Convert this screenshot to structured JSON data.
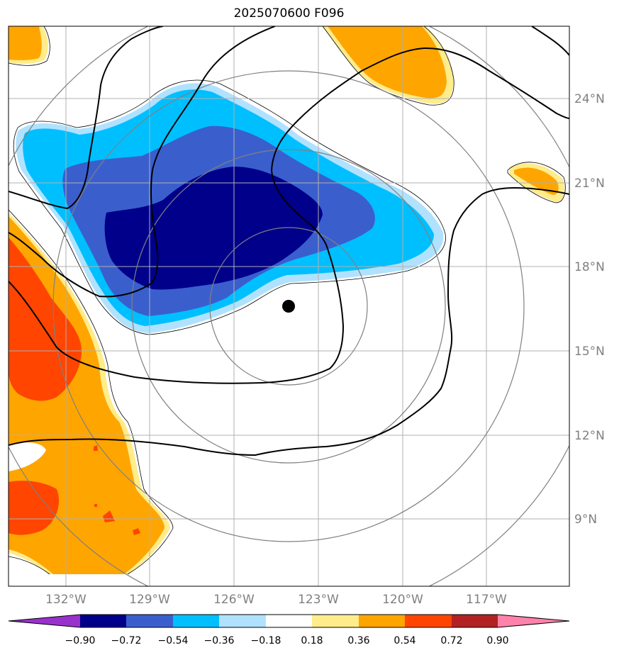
{
  "title": "2025070600 F096",
  "map": {
    "lon_labels": [
      "132°W",
      "129°W",
      "126°W",
      "123°W",
      "120°W",
      "117°W"
    ],
    "lat_labels": [
      "24°N",
      "21°N",
      "18°N",
      "15°N",
      "12°N",
      "9°N"
    ],
    "lon_values": [
      -132,
      -129,
      -126,
      -123,
      -120,
      -117
    ],
    "lat_values": [
      24,
      21,
      18,
      15,
      12,
      9
    ],
    "lon_range": [
      -134.4,
      -114.4
    ],
    "lat_range": [
      6.6,
      26.6
    ],
    "center_marker": {
      "lon": -124.1,
      "lat": 16.6
    },
    "range_rings": 4,
    "grid": true
  },
  "colorbar": {
    "levels": [
      "−0.90",
      "−0.72",
      "−0.54",
      "−0.36",
      "−0.18",
      "0.18",
      "0.36",
      "0.54",
      "0.72",
      "0.90"
    ],
    "colors": [
      "#9932cc",
      "#00008b",
      "#3a5fcd",
      "#00bfff",
      "#b0e2ff",
      "#ffffff",
      "#ffec8b",
      "#ffa500",
      "#ff4500",
      "#b22222",
      "#ff82ab"
    ],
    "extend": "both"
  },
  "colors": {
    "grid": "#b0b0b0",
    "rings": "#808080",
    "contour": "#000000"
  }
}
